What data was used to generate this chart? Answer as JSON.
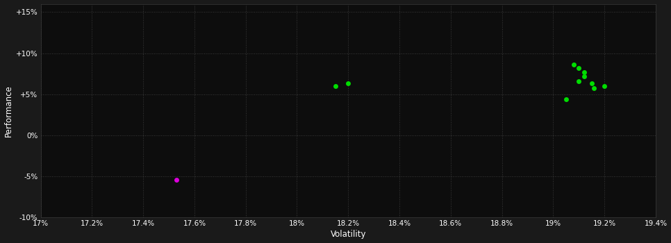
{
  "background_color": "#1a1a1a",
  "plot_bg_color": "#0d0d0d",
  "grid_color": "#3a3a3a",
  "text_color": "#ffffff",
  "xlabel": "Volatility",
  "ylabel": "Performance",
  "xlim": [
    0.17,
    0.194
  ],
  "ylim": [
    -0.1,
    0.16
  ],
  "xticks": [
    0.17,
    0.172,
    0.174,
    0.176,
    0.178,
    0.18,
    0.182,
    0.184,
    0.186,
    0.188,
    0.19,
    0.192,
    0.194
  ],
  "yticks": [
    -0.1,
    -0.05,
    0.0,
    0.05,
    0.1,
    0.15
  ],
  "ytick_labels": [
    "-10%",
    "-5%",
    "0%",
    "+5%",
    "+10%",
    "+15%"
  ],
  "xtick_labels": [
    "17%",
    "17.2%",
    "17.4%",
    "17.6%",
    "17.8%",
    "18%",
    "18.2%",
    "18.4%",
    "18.6%",
    "18.8%",
    "19%",
    "19.2%",
    "19.4%"
  ],
  "green_points": [
    [
      0.1815,
      0.06
    ],
    [
      0.182,
      0.063
    ],
    [
      0.1905,
      0.044
    ],
    [
      0.1908,
      0.086
    ],
    [
      0.191,
      0.082
    ],
    [
      0.1912,
      0.077
    ],
    [
      0.1912,
      0.072
    ],
    [
      0.191,
      0.066
    ],
    [
      0.1915,
      0.063
    ],
    [
      0.192,
      0.06
    ],
    [
      0.1916,
      0.057
    ]
  ],
  "magenta_points": [
    [
      0.1753,
      -0.054
    ]
  ],
  "point_size": 25,
  "green_color": "#00dd00",
  "magenta_color": "#dd00dd"
}
